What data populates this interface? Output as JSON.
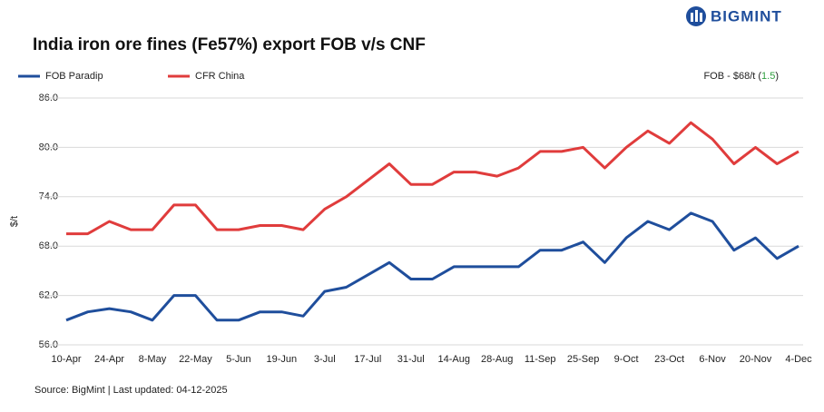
{
  "chart_data": {
    "type": "line",
    "title": "India iron ore fines (Fe57%) export FOB v/s CNF",
    "brand": "BIGMINT",
    "ylabel": "$/t",
    "annotation_prefix": "FOB - $68/t (",
    "annotation_change": "1.5",
    "annotation_suffix": ")",
    "source": "Source: BigMint | Last updated: 04-12-2025",
    "categories": [
      "10-Apr",
      null,
      "24-Apr",
      null,
      "8-May",
      null,
      "22-May",
      null,
      "5-Jun",
      null,
      "19-Jun",
      null,
      "3-Jul",
      null,
      "17-Jul",
      null,
      "31-Jul",
      null,
      "14-Aug",
      null,
      "28-Aug",
      null,
      "11-Sep",
      null,
      "25-Sep",
      null,
      "9-Oct",
      null,
      "23-Oct",
      null,
      "6-Nov",
      null,
      "20-Nov",
      null,
      "4-Dec"
    ],
    "series": [
      {
        "name": "FOB Paradip",
        "color": "#1f4e9c",
        "values": [
          59.0,
          60.0,
          60.4,
          60.0,
          59.0,
          62.0,
          62.0,
          59.0,
          59.0,
          60.0,
          60.0,
          59.5,
          62.5,
          63.0,
          64.5,
          66.0,
          64.0,
          64.0,
          65.5,
          65.5,
          65.5,
          65.5,
          67.5,
          67.5,
          68.5,
          66.0,
          69.0,
          71.0,
          70.0,
          72.0,
          71.0,
          67.5,
          69.0,
          66.5,
          68.0
        ]
      },
      {
        "name": "CFR China",
        "color": "#e03c3c",
        "values": [
          69.5,
          69.5,
          71.0,
          70.0,
          70.0,
          73.0,
          73.0,
          70.0,
          70.0,
          70.5,
          70.5,
          70.0,
          72.5,
          74.0,
          76.0,
          78.0,
          75.5,
          75.5,
          77.0,
          77.0,
          76.5,
          77.5,
          79.5,
          79.5,
          80.0,
          77.5,
          80.0,
          82.0,
          80.5,
          83.0,
          81.0,
          78.0,
          80.0,
          78.0,
          79.5
        ]
      }
    ],
    "ylim": [
      56,
      86
    ],
    "yticks": [
      {
        "value": 56,
        "label": "56.0"
      },
      {
        "value": 62,
        "label": "62.0"
      },
      {
        "value": 68,
        "label": "68.0"
      },
      {
        "value": 74,
        "label": "74.0"
      },
      {
        "value": 80,
        "label": "80.0"
      },
      {
        "value": 86,
        "label": "86.0"
      }
    ],
    "grid": true
  }
}
